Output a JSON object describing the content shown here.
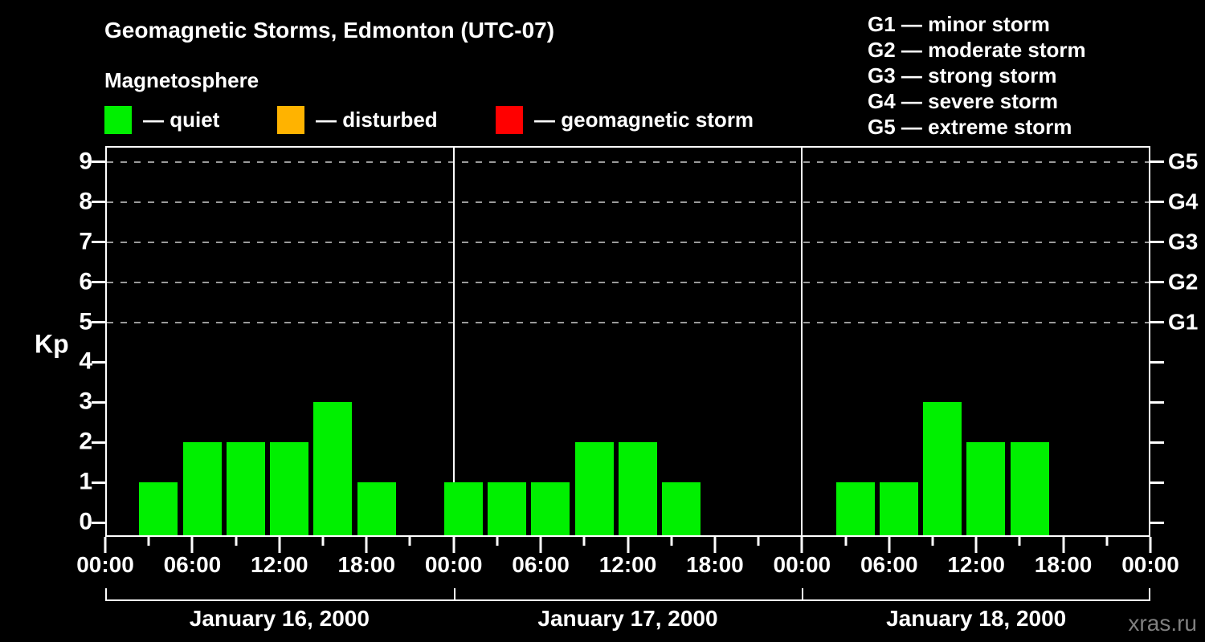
{
  "title": "Geomagnetic Storms, Edmonton (UTC-07)",
  "subtitle": "Magnetosphere",
  "legend": {
    "items": [
      {
        "name": "quiet",
        "label": "— quiet",
        "color": "#00f000"
      },
      {
        "name": "disturbed",
        "label": "— disturbed",
        "color": "#ffb300"
      },
      {
        "name": "geomagnetic-storm",
        "label": "— geomagnetic storm",
        "color": "#ff0000"
      }
    ]
  },
  "g_legend": [
    "G1 — minor storm",
    "G2 — moderate storm",
    "G3 — strong storm",
    "G4 — severe storm",
    "G5 — extreme storm"
  ],
  "watermark": "xras.ru",
  "chart_data": {
    "type": "bar",
    "title": "Geomagnetic Storms, Edmonton (UTC-07)",
    "ylabel": "Kp",
    "ylim": [
      0,
      9
    ],
    "yticks": [
      0,
      1,
      2,
      3,
      4,
      5,
      6,
      7,
      8,
      9
    ],
    "grid": "dashed horizontal lines at storm levels only",
    "legend_position": "top",
    "g_levels": [
      {
        "kp": 5,
        "label": "G1"
      },
      {
        "kp": 6,
        "label": "G2"
      },
      {
        "kp": 7,
        "label": "G3"
      },
      {
        "kp": 8,
        "label": "G4"
      },
      {
        "kp": 9,
        "label": "G5"
      }
    ],
    "x_axis_hours_total": 72,
    "x_major_tick_hours": 6,
    "x_minor_tick_hours": 3,
    "time_labels_cycle": [
      "00:00",
      "06:00",
      "12:00",
      "18:00"
    ],
    "slot_start_hours_local": [
      2,
      5,
      8,
      11,
      14,
      17,
      20,
      23
    ],
    "slot_duration_hours": 3,
    "bar_color_rule": {
      "quiet_max_kp": 3,
      "disturbed_kp": 4,
      "storm_min_kp": 5
    },
    "days": [
      {
        "date": "January 16, 2000",
        "kp_values": [
          1,
          2,
          2,
          2,
          3,
          1,
          0,
          1
        ]
      },
      {
        "date": "January 17, 2000",
        "kp_values": [
          1,
          1,
          2,
          2,
          1,
          0,
          0,
          0
        ]
      },
      {
        "date": "January 18, 2000",
        "kp_values": [
          1,
          1,
          3,
          2,
          2,
          0,
          0,
          0
        ]
      }
    ]
  }
}
